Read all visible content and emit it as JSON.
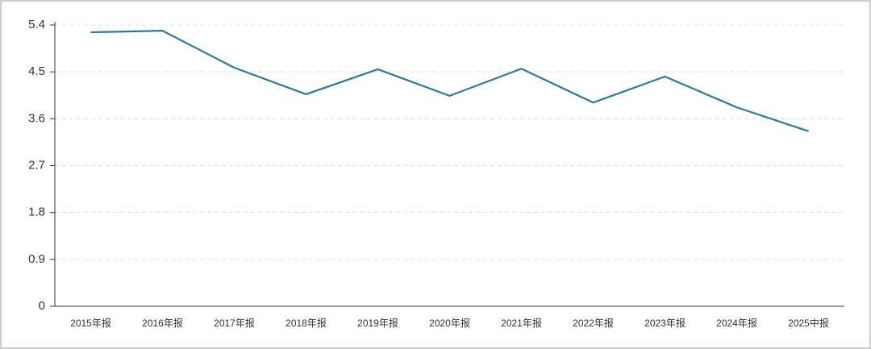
{
  "chart_data": {
    "type": "line",
    "categories": [
      "2015年报",
      "2016年报",
      "2017年报",
      "2018年报",
      "2019年报",
      "2020年报",
      "2021年报",
      "2022年报",
      "2023年报",
      "2024年报",
      "2025中报"
    ],
    "values": [
      5.26,
      5.29,
      4.58,
      4.07,
      4.55,
      4.04,
      4.56,
      3.91,
      4.41,
      3.82,
      3.36
    ],
    "color": "#2b79a0",
    "ylim": [
      0,
      5.4
    ],
    "yticks": [
      0,
      0.9,
      1.8,
      2.7,
      3.6,
      4.5,
      5.4
    ],
    "grid": true
  }
}
